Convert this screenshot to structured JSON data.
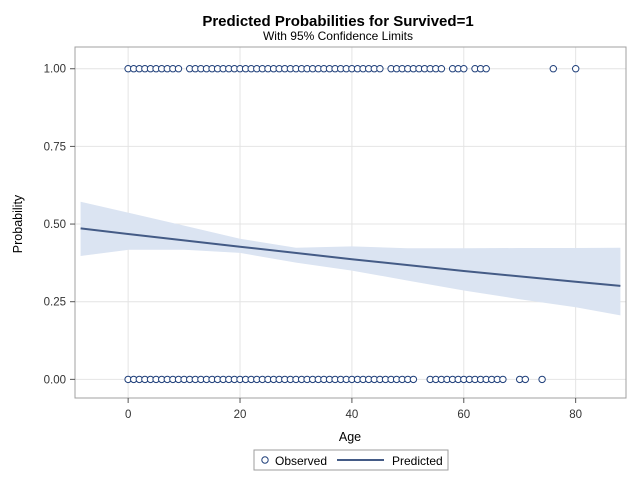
{
  "chart_data": {
    "type": "scatter",
    "title": "Predicted Probabilities for Survived=1",
    "subtitle": "With 95% Confidence Limits",
    "xlabel": "Age",
    "ylabel": "Probability",
    "xlim": [
      -9.5,
      89
    ],
    "ylim": [
      -0.06,
      1.07
    ],
    "x_ticks": [
      0,
      20,
      40,
      60,
      80
    ],
    "x_tick_labels": [
      "0",
      "20",
      "40",
      "60",
      "80"
    ],
    "y_ticks": [
      0,
      0.25,
      0.5,
      0.75,
      1
    ],
    "y_tick_labels": [
      "0.00",
      "0.25",
      "0.50",
      "0.75",
      "1.00"
    ],
    "grid": true,
    "legend_position": "bottom-center",
    "colors": {
      "observed": "#1f3f7a",
      "predicted": "#445b86",
      "band": "#dbe4f2",
      "grid": "#e4e4e4",
      "frame": "#a0a0a0"
    },
    "series": [
      {
        "name": "Observed",
        "kind": "marker",
        "points": [
          {
            "x": 0,
            "y": 1
          },
          {
            "x": 1,
            "y": 1
          },
          {
            "x": 2,
            "y": 1
          },
          {
            "x": 3,
            "y": 1
          },
          {
            "x": 4,
            "y": 1
          },
          {
            "x": 5,
            "y": 1
          },
          {
            "x": 6,
            "y": 1
          },
          {
            "x": 7,
            "y": 1
          },
          {
            "x": 8,
            "y": 1
          },
          {
            "x": 9,
            "y": 1
          },
          {
            "x": 11,
            "y": 1
          },
          {
            "x": 12,
            "y": 1
          },
          {
            "x": 13,
            "y": 1
          },
          {
            "x": 14,
            "y": 1
          },
          {
            "x": 15,
            "y": 1
          },
          {
            "x": 16,
            "y": 1
          },
          {
            "x": 17,
            "y": 1
          },
          {
            "x": 18,
            "y": 1
          },
          {
            "x": 19,
            "y": 1
          },
          {
            "x": 20,
            "y": 1
          },
          {
            "x": 21,
            "y": 1
          },
          {
            "x": 22,
            "y": 1
          },
          {
            "x": 23,
            "y": 1
          },
          {
            "x": 24,
            "y": 1
          },
          {
            "x": 25,
            "y": 1
          },
          {
            "x": 26,
            "y": 1
          },
          {
            "x": 27,
            "y": 1
          },
          {
            "x": 28,
            "y": 1
          },
          {
            "x": 29,
            "y": 1
          },
          {
            "x": 30,
            "y": 1
          },
          {
            "x": 31,
            "y": 1
          },
          {
            "x": 32,
            "y": 1
          },
          {
            "x": 33,
            "y": 1
          },
          {
            "x": 34,
            "y": 1
          },
          {
            "x": 35,
            "y": 1
          },
          {
            "x": 36,
            "y": 1
          },
          {
            "x": 37,
            "y": 1
          },
          {
            "x": 38,
            "y": 1
          },
          {
            "x": 39,
            "y": 1
          },
          {
            "x": 40,
            "y": 1
          },
          {
            "x": 41,
            "y": 1
          },
          {
            "x": 42,
            "y": 1
          },
          {
            "x": 43,
            "y": 1
          },
          {
            "x": 44,
            "y": 1
          },
          {
            "x": 45,
            "y": 1
          },
          {
            "x": 47,
            "y": 1
          },
          {
            "x": 48,
            "y": 1
          },
          {
            "x": 49,
            "y": 1
          },
          {
            "x": 50,
            "y": 1
          },
          {
            "x": 51,
            "y": 1
          },
          {
            "x": 52,
            "y": 1
          },
          {
            "x": 53,
            "y": 1
          },
          {
            "x": 54,
            "y": 1
          },
          {
            "x": 55,
            "y": 1
          },
          {
            "x": 56,
            "y": 1
          },
          {
            "x": 58,
            "y": 1
          },
          {
            "x": 59,
            "y": 1
          },
          {
            "x": 60,
            "y": 1
          },
          {
            "x": 62,
            "y": 1
          },
          {
            "x": 63,
            "y": 1
          },
          {
            "x": 64,
            "y": 1
          },
          {
            "x": 76,
            "y": 1
          },
          {
            "x": 80,
            "y": 1
          },
          {
            "x": 0,
            "y": 0
          },
          {
            "x": 1,
            "y": 0
          },
          {
            "x": 2,
            "y": 0
          },
          {
            "x": 3,
            "y": 0
          },
          {
            "x": 4,
            "y": 0
          },
          {
            "x": 5,
            "y": 0
          },
          {
            "x": 6,
            "y": 0
          },
          {
            "x": 7,
            "y": 0
          },
          {
            "x": 8,
            "y": 0
          },
          {
            "x": 9,
            "y": 0
          },
          {
            "x": 10,
            "y": 0
          },
          {
            "x": 11,
            "y": 0
          },
          {
            "x": 12,
            "y": 0
          },
          {
            "x": 13,
            "y": 0
          },
          {
            "x": 14,
            "y": 0
          },
          {
            "x": 15,
            "y": 0
          },
          {
            "x": 16,
            "y": 0
          },
          {
            "x": 17,
            "y": 0
          },
          {
            "x": 18,
            "y": 0
          },
          {
            "x": 19,
            "y": 0
          },
          {
            "x": 20,
            "y": 0
          },
          {
            "x": 21,
            "y": 0
          },
          {
            "x": 22,
            "y": 0
          },
          {
            "x": 23,
            "y": 0
          },
          {
            "x": 24,
            "y": 0
          },
          {
            "x": 25,
            "y": 0
          },
          {
            "x": 26,
            "y": 0
          },
          {
            "x": 27,
            "y": 0
          },
          {
            "x": 28,
            "y": 0
          },
          {
            "x": 29,
            "y": 0
          },
          {
            "x": 30,
            "y": 0
          },
          {
            "x": 31,
            "y": 0
          },
          {
            "x": 32,
            "y": 0
          },
          {
            "x": 33,
            "y": 0
          },
          {
            "x": 34,
            "y": 0
          },
          {
            "x": 35,
            "y": 0
          },
          {
            "x": 36,
            "y": 0
          },
          {
            "x": 37,
            "y": 0
          },
          {
            "x": 38,
            "y": 0
          },
          {
            "x": 39,
            "y": 0
          },
          {
            "x": 40,
            "y": 0
          },
          {
            "x": 41,
            "y": 0
          },
          {
            "x": 42,
            "y": 0
          },
          {
            "x": 43,
            "y": 0
          },
          {
            "x": 44,
            "y": 0
          },
          {
            "x": 45,
            "y": 0
          },
          {
            "x": 46,
            "y": 0
          },
          {
            "x": 47,
            "y": 0
          },
          {
            "x": 48,
            "y": 0
          },
          {
            "x": 49,
            "y": 0
          },
          {
            "x": 50,
            "y": 0
          },
          {
            "x": 51,
            "y": 0
          },
          {
            "x": 54,
            "y": 0
          },
          {
            "x": 55,
            "y": 0
          },
          {
            "x": 56,
            "y": 0
          },
          {
            "x": 57,
            "y": 0
          },
          {
            "x": 58,
            "y": 0
          },
          {
            "x": 59,
            "y": 0
          },
          {
            "x": 60,
            "y": 0
          },
          {
            "x": 61,
            "y": 0
          },
          {
            "x": 62,
            "y": 0
          },
          {
            "x": 63,
            "y": 0
          },
          {
            "x": 64,
            "y": 0
          },
          {
            "x": 65,
            "y": 0
          },
          {
            "x": 66,
            "y": 0
          },
          {
            "x": 67,
            "y": 0
          },
          {
            "x": 70,
            "y": 0
          },
          {
            "x": 71,
            "y": 0
          },
          {
            "x": 74,
            "y": 0
          }
        ]
      },
      {
        "name": "Predicted",
        "kind": "line",
        "points": [
          {
            "x": -8.5,
            "y": 0.486
          },
          {
            "x": 0,
            "y": 0.468
          },
          {
            "x": 20,
            "y": 0.427
          },
          {
            "x": 40,
            "y": 0.387
          },
          {
            "x": 60,
            "y": 0.349
          },
          {
            "x": 80,
            "y": 0.314
          },
          {
            "x": 88,
            "y": 0.301
          }
        ]
      }
    ],
    "confidence_band": {
      "label": "95% Confidence Limits",
      "x": [
        -8.5,
        0,
        10,
        20,
        30,
        40,
        50,
        60,
        70,
        80,
        88
      ],
      "lower": [
        0.397,
        0.417,
        0.417,
        0.407,
        0.376,
        0.35,
        0.318,
        0.286,
        0.258,
        0.232,
        0.206
      ],
      "upper": [
        0.572,
        0.537,
        0.495,
        0.453,
        0.424,
        0.428,
        0.422,
        0.422,
        0.423,
        0.423,
        0.424
      ]
    }
  }
}
